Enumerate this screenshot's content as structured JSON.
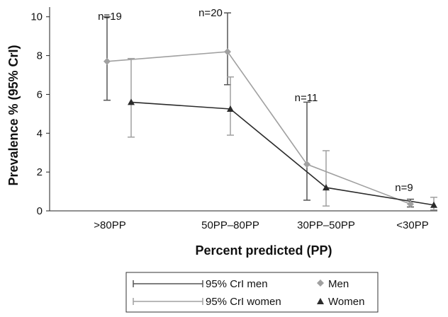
{
  "chart_data": {
    "type": "line",
    "xlabel": "Percent predicted (PP)",
    "ylabel": "Prevalence % (95% CrI)",
    "categories": [
      ">80PP",
      "50PP–80PP",
      "30PP–50PP",
      "<30PP"
    ],
    "ylim": [
      0,
      10.5
    ],
    "yticks": [
      0,
      2,
      4,
      6,
      8,
      10
    ],
    "grid": false,
    "n_labels": [
      "n=19",
      "n=20",
      "n=11",
      "n=9"
    ],
    "series": [
      {
        "name": "Men",
        "marker": "diamond",
        "color": "#a0a0a0",
        "values": [
          7.7,
          8.2,
          2.4,
          0.35
        ],
        "ci_low": [
          5.7,
          6.5,
          0.55,
          0.2
        ],
        "ci_high": [
          10.0,
          10.2,
          5.6,
          0.6
        ]
      },
      {
        "name": "Women",
        "marker": "triangle",
        "color": "#2b2b2b",
        "values": [
          5.6,
          5.25,
          1.2,
          0.3
        ],
        "ci_low": [
          3.8,
          3.9,
          0.25,
          0.05
        ],
        "ci_high": [
          7.85,
          6.9,
          3.1,
          0.7
        ]
      }
    ],
    "legend": {
      "position": "bottom",
      "items": [
        {
          "label": "95% CrI men",
          "kind": "errorbar",
          "color": "#555555"
        },
        {
          "label": "Men",
          "kind": "diamond",
          "color": "#a0a0a0"
        },
        {
          "label": "95% CrI women",
          "kind": "errorbar",
          "color": "#a0a0a0"
        },
        {
          "label": "Women",
          "kind": "triangle",
          "color": "#2b2b2b"
        }
      ]
    }
  }
}
